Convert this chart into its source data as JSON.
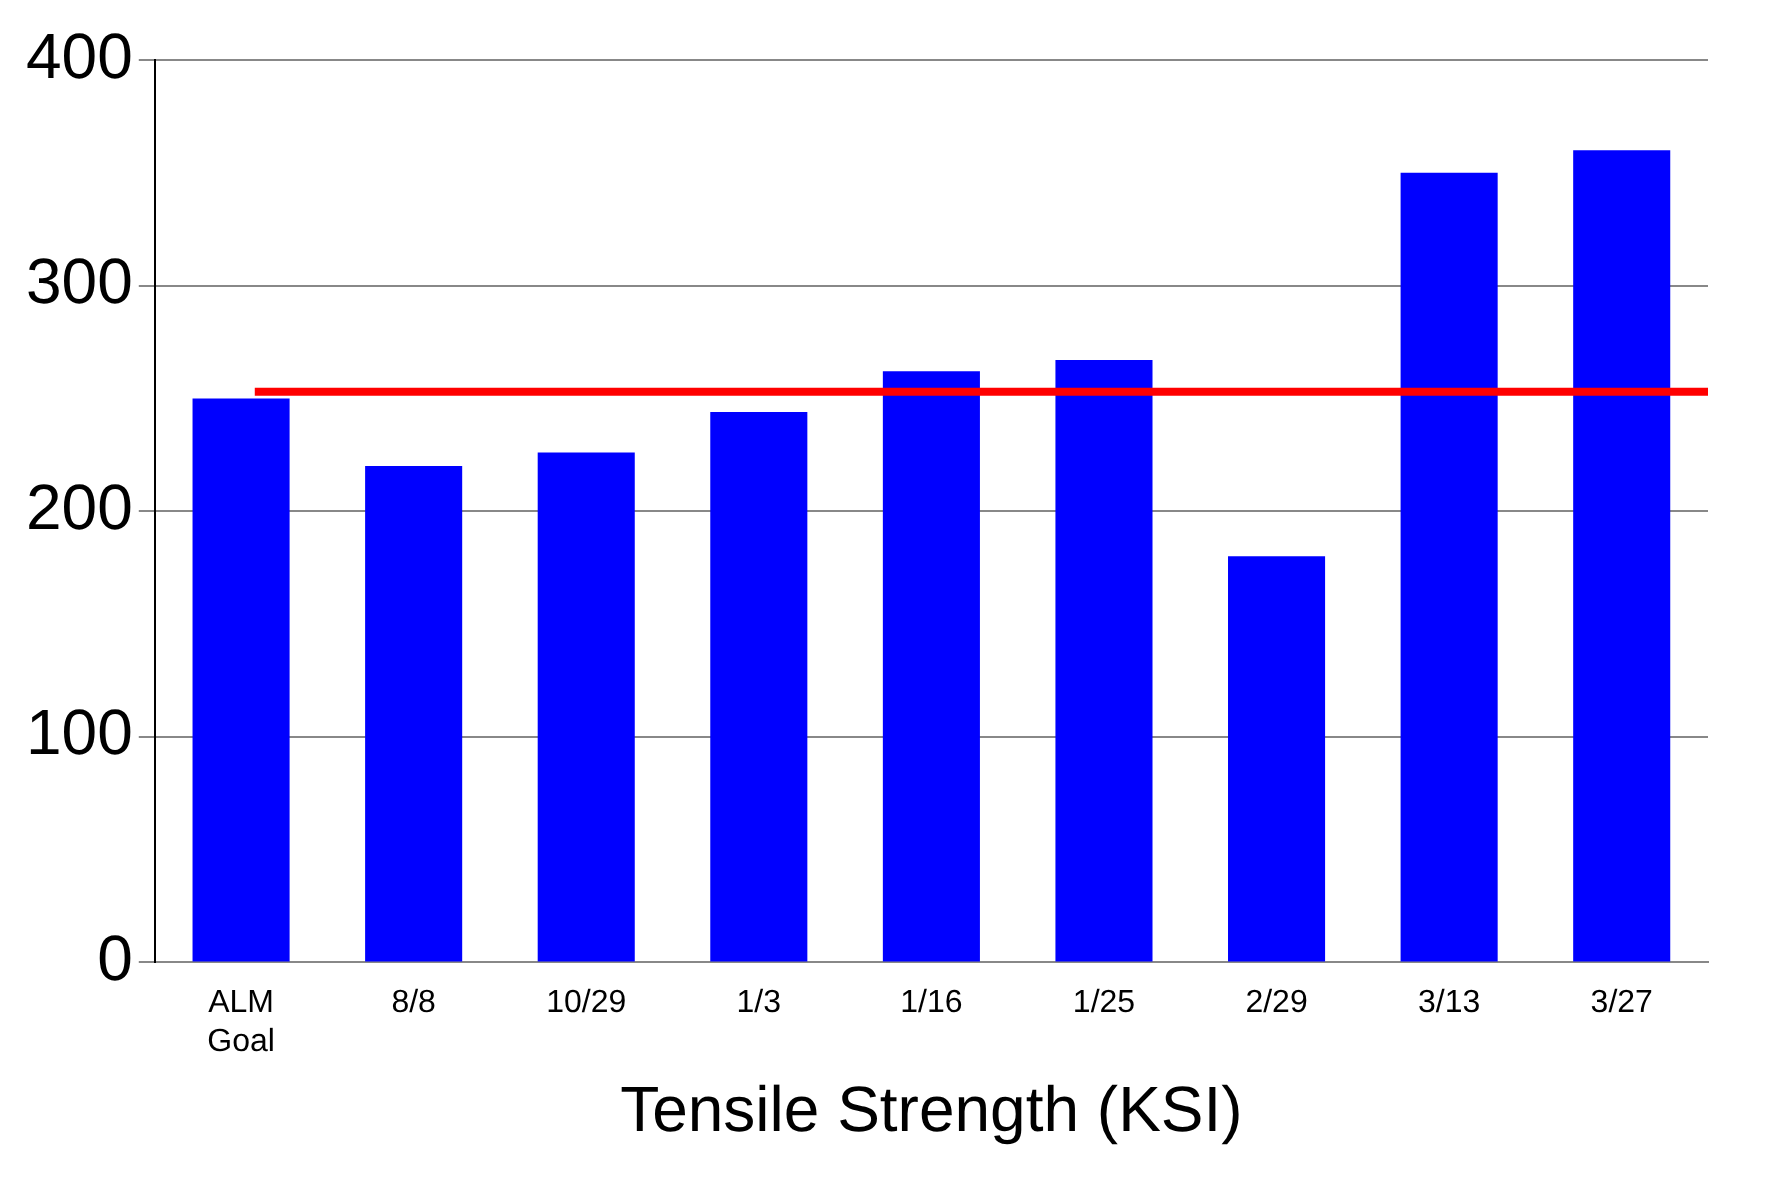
{
  "chart_data": {
    "type": "bar",
    "xlabel": "Tensile Strength (KSI)",
    "categories": [
      "ALM Goal",
      "8/8",
      "10/29",
      "1/3",
      "1/16",
      "1/25",
      "2/29",
      "3/13",
      "3/27"
    ],
    "values": [
      250,
      220,
      226,
      244,
      262,
      267,
      180,
      350,
      360
    ],
    "color": "#0000ff",
    "ylim": [
      0,
      400
    ],
    "yticks": [
      0,
      100,
      200,
      300,
      400
    ],
    "grid": "y",
    "ref_lines": [
      {
        "axis": "y",
        "value": 253,
        "color": "#ff0000"
      }
    ]
  }
}
